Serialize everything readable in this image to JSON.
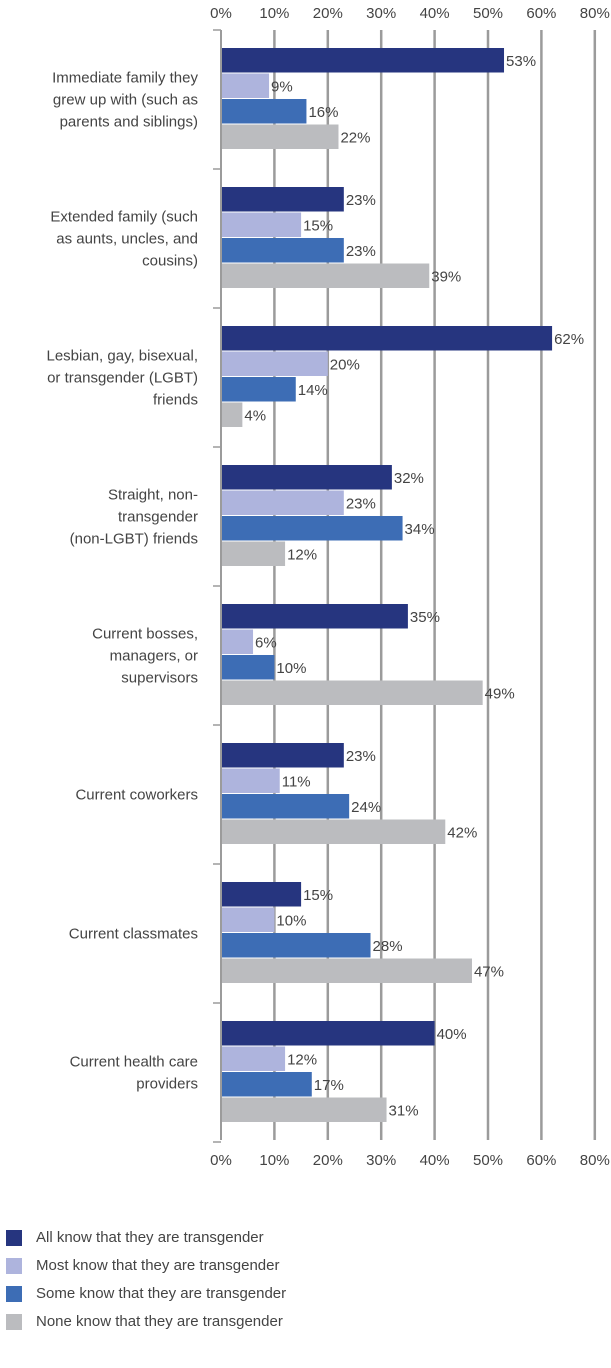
{
  "chart_data": {
    "type": "bar",
    "orientation": "horizontal",
    "title": "",
    "xlabel": "",
    "ylabel": "",
    "xlim": [
      0,
      80
    ],
    "x_ticks": [
      "0%",
      "10%",
      "20%",
      "30%",
      "40%",
      "50%",
      "60%",
      "80%"
    ],
    "grid": true,
    "legend_position": "bottom",
    "value_suffix": "%",
    "categories": [
      [
        "Immediate family they",
        "grew up with (such as",
        "parents and siblings)"
      ],
      [
        "Extended family (such",
        "as aunts, uncles, and",
        "cousins)"
      ],
      [
        "Lesbian, gay, bisexual,",
        "or transgender (LGBT)",
        "friends"
      ],
      [
        "Straight, non-",
        "transgender",
        "(non-LGBT) friends"
      ],
      [
        "Current bosses,",
        "managers, or",
        "supervisors"
      ],
      [
        "Current coworkers"
      ],
      [
        "Current classmates"
      ],
      [
        "Current health care",
        "providers"
      ]
    ],
    "series": [
      {
        "name": "All know that they are transgender",
        "color": "#26357f",
        "values": [
          53,
          23,
          62,
          32,
          35,
          23,
          15,
          40
        ]
      },
      {
        "name": "Most know that they are transgender",
        "color": "#aeb4dd",
        "values": [
          9,
          15,
          20,
          23,
          6,
          11,
          10,
          12
        ]
      },
      {
        "name": "Some know that they are transgender",
        "color": "#3d6db5",
        "values": [
          16,
          23,
          14,
          34,
          10,
          24,
          28,
          17
        ]
      },
      {
        "name": "None know that they are transgender",
        "color": "#bbbcbf",
        "values": [
          22,
          39,
          4,
          12,
          49,
          42,
          47,
          31
        ]
      }
    ]
  }
}
